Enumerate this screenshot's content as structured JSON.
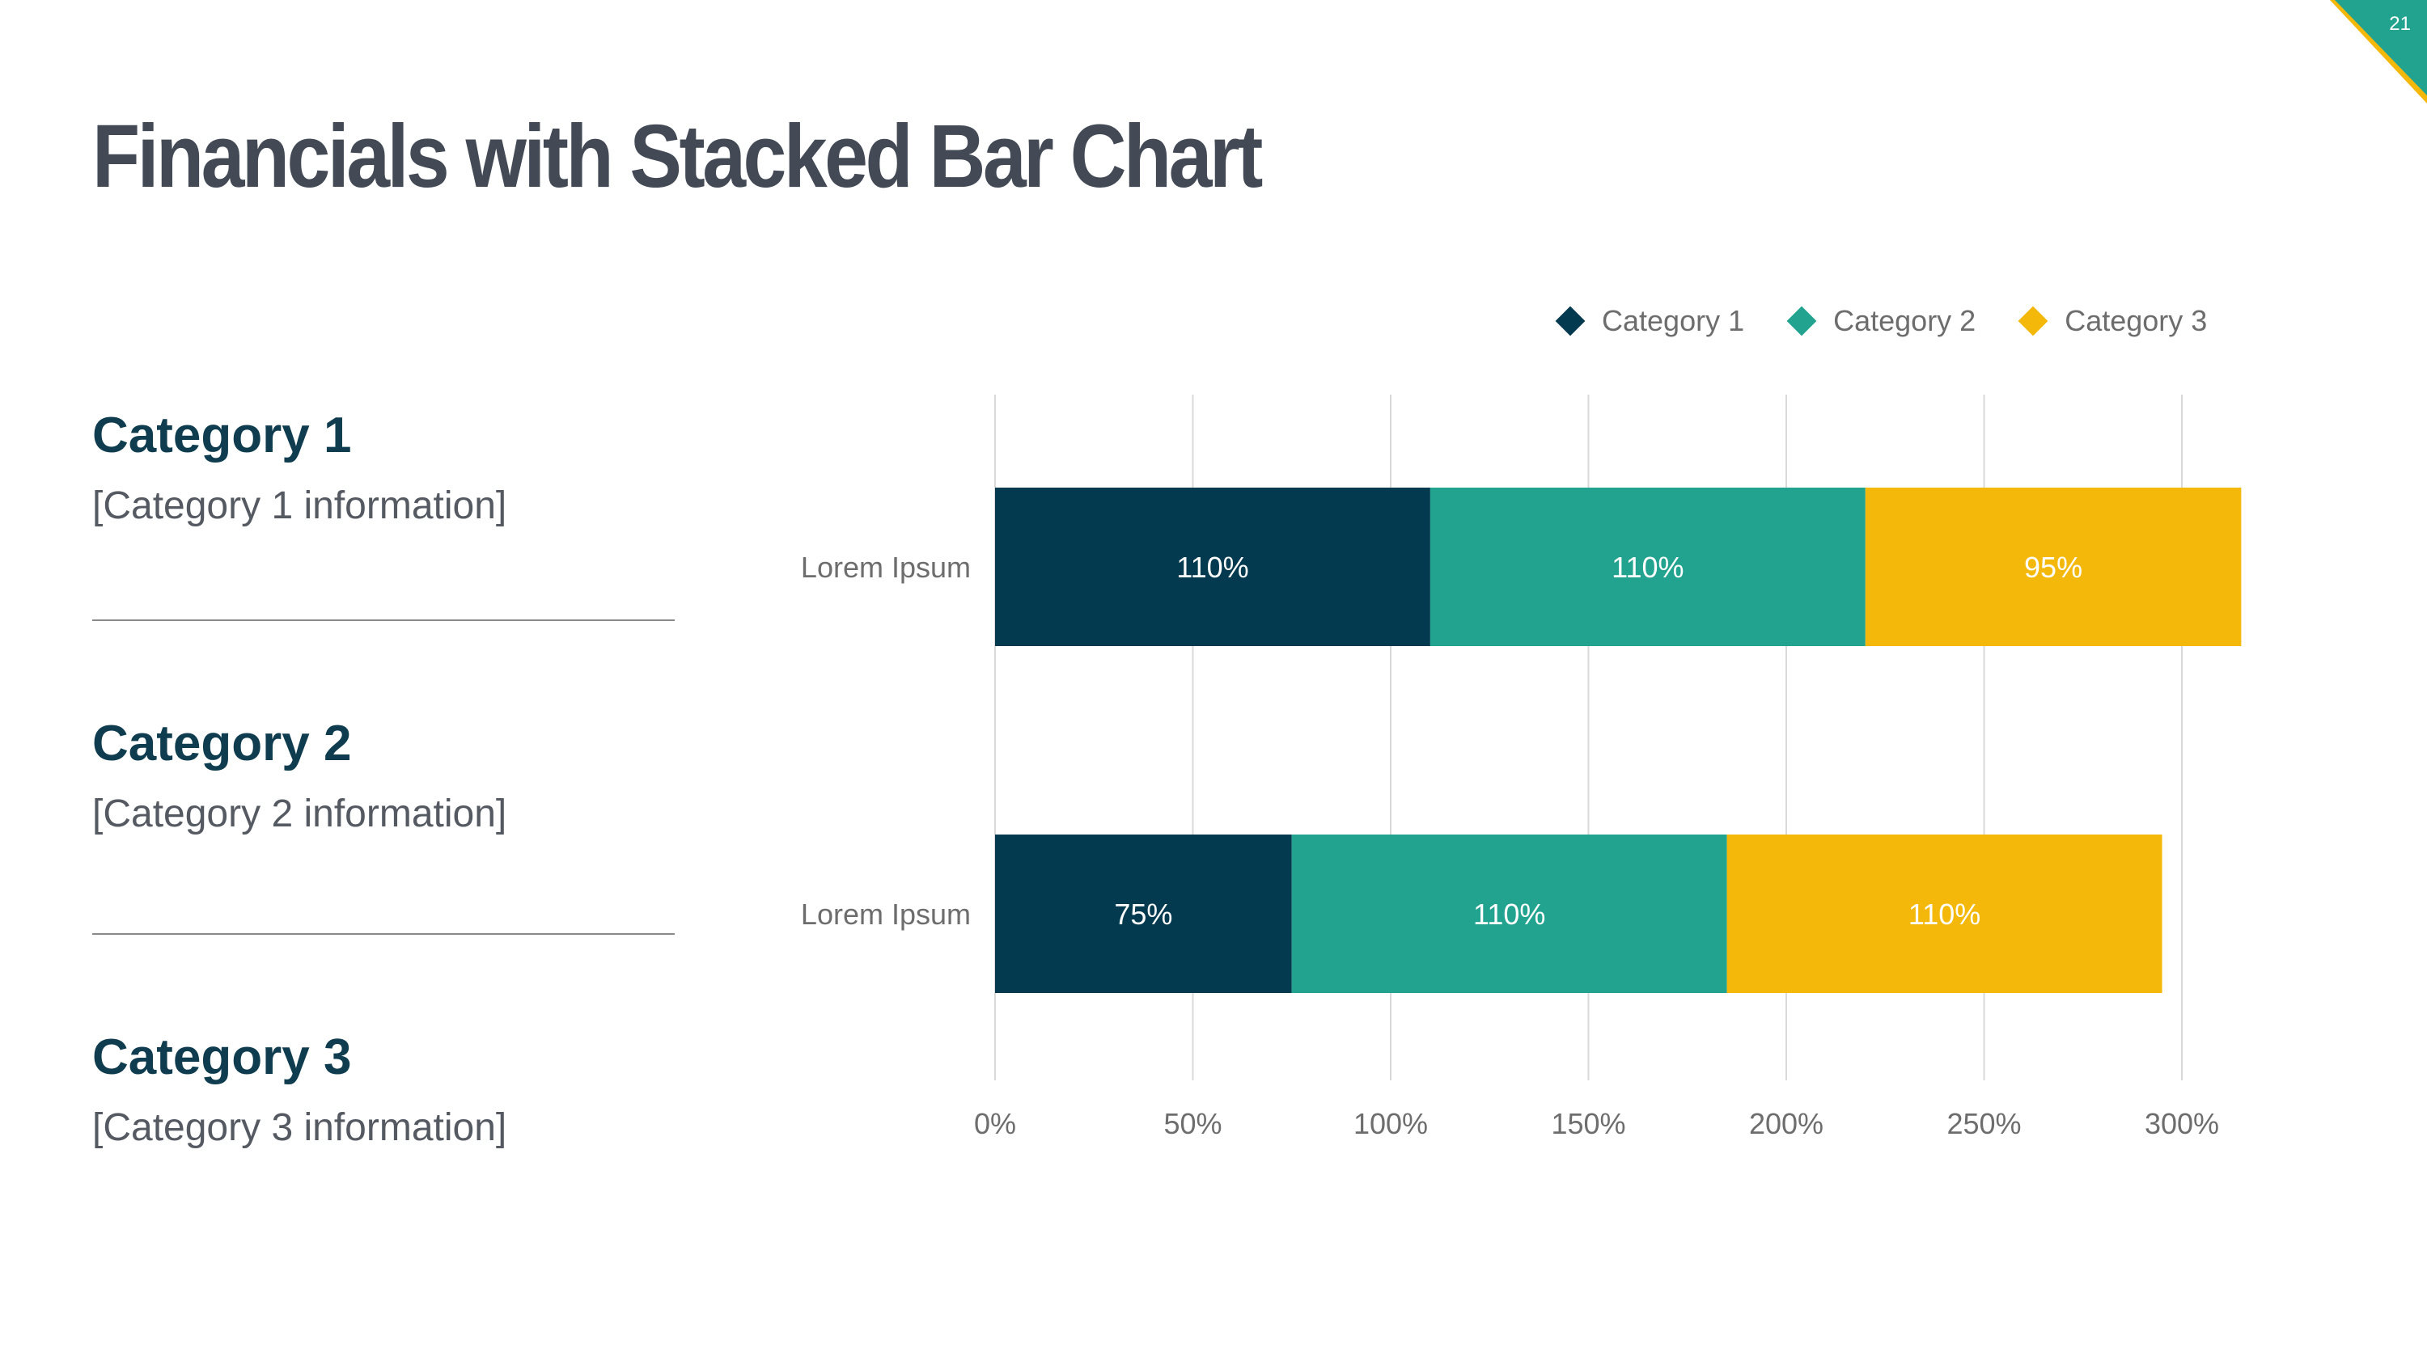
{
  "slide": {
    "title": "Financials with Stacked Bar Chart",
    "number": "21"
  },
  "colors": {
    "title": "#434a56",
    "heading": "#0f3d4f",
    "body": "#555a62",
    "category1": "#043a4f",
    "category2": "#22a390",
    "category3": "#f4b80a",
    "grid": "#d9d9d9"
  },
  "categories_panel": [
    {
      "title": "Category 1",
      "info": "[Category 1 information]"
    },
    {
      "title": "Category 2",
      "info": "[Category 2 information]"
    },
    {
      "title": "Category 3",
      "info": "[Category 3 information]"
    }
  ],
  "legend": {
    "position": "top-right",
    "items": [
      {
        "label": "Category 1",
        "icon": "diamond-icon"
      },
      {
        "label": "Category 2",
        "icon": "diamond-icon"
      },
      {
        "label": "Category 3",
        "icon": "diamond-icon"
      }
    ]
  },
  "chart_data": {
    "type": "bar",
    "orientation": "horizontal",
    "stacked": true,
    "categories": [
      "Lorem Ipsum",
      "Lorem Ipsum"
    ],
    "series": [
      {
        "name": "Category 1",
        "values": [
          110,
          75
        ],
        "labels": [
          "110%",
          "75%"
        ]
      },
      {
        "name": "Category 2",
        "values": [
          110,
          110
        ],
        "labels": [
          "110%",
          "110%"
        ]
      },
      {
        "name": "Category 3",
        "values": [
          95,
          110
        ],
        "labels": [
          "95%",
          "110%"
        ]
      }
    ],
    "xlim": [
      0,
      300
    ],
    "xticks": [
      0,
      50,
      100,
      150,
      200,
      250,
      300
    ],
    "xtick_labels": [
      "0%",
      "50%",
      "100%",
      "150%",
      "200%",
      "250%",
      "300%"
    ],
    "grid": "vertical",
    "xlabel": "",
    "ylabel": ""
  }
}
